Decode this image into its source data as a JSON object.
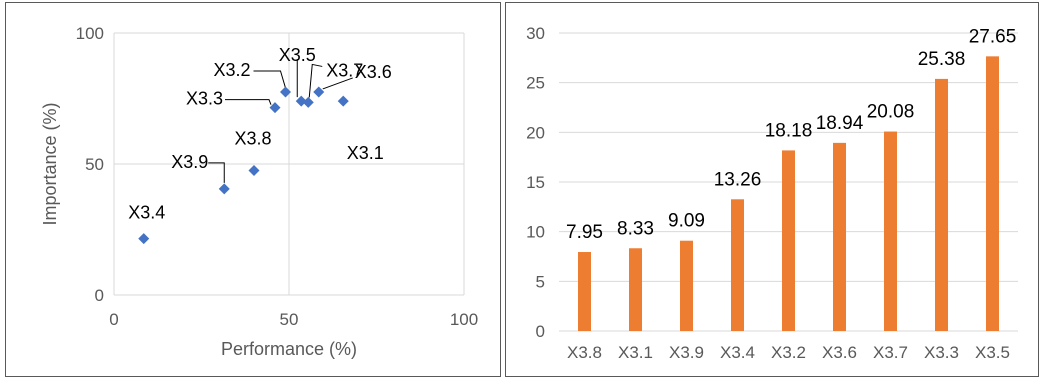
{
  "chart_data": [
    {
      "type": "scatter",
      "xlabel": "Performance (%)",
      "ylabel": "Importance (%)",
      "xlim": [
        0,
        100
      ],
      "ylim": [
        0,
        100
      ],
      "xticks": [
        "0",
        "50",
        "100"
      ],
      "yticks": [
        "0",
        "50",
        "100"
      ],
      "grid": true,
      "marker_color": "#4472C4",
      "points": [
        {
          "label": "X3.1",
          "x": 65.5,
          "y": 74
        },
        {
          "label": "X3.2",
          "x": 49,
          "y": 77.5
        },
        {
          "label": "X3.3",
          "x": 46,
          "y": 71.5
        },
        {
          "label": "X3.4",
          "x": 8.5,
          "y": 21.5
        },
        {
          "label": "X3.5",
          "x": 53.5,
          "y": 74
        },
        {
          "label": "X3.6",
          "x": 58.5,
          "y": 77.5
        },
        {
          "label": "X3.7",
          "x": 55.5,
          "y": 73.5
        },
        {
          "label": "X3.8",
          "x": 40,
          "y": 47.5
        },
        {
          "label": "X3.9",
          "x": 31.5,
          "y": 40.5
        }
      ]
    },
    {
      "type": "bar",
      "categories": [
        "X3.8",
        "X3.1",
        "X3.9",
        "X3.4",
        "X3.2",
        "X3.6",
        "X3.7",
        "X3.3",
        "X3.5"
      ],
      "values": [
        7.95,
        8.33,
        9.09,
        13.26,
        18.18,
        18.94,
        20.08,
        25.38,
        27.65
      ],
      "value_labels": [
        "7.95",
        "8.33",
        "9.09",
        "13.26",
        "18.18",
        "18.94",
        "20.08",
        "25.38",
        "27.65"
      ],
      "ylim": [
        0,
        30
      ],
      "yticks": [
        "0",
        "5",
        "10",
        "15",
        "20",
        "25",
        "30"
      ],
      "grid": true,
      "bar_color": "#ED7D31"
    }
  ]
}
